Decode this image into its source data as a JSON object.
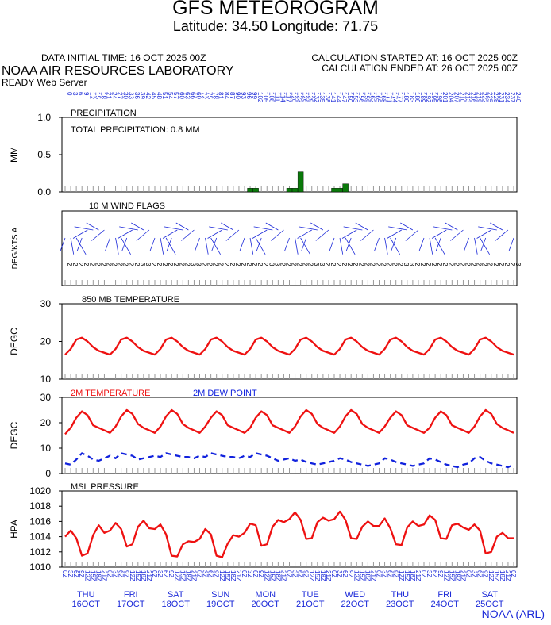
{
  "header": {
    "title": "GFS METEOROGRAM",
    "latlon": "Latitude: 34.50 Longitude:  71.75",
    "data_initial_time": "DATA INITIAL TIME: 16 OCT 2025 00Z",
    "calc_started": "CALCULATION STARTED AT: 16 OCT 2025 00Z",
    "calc_ended": "CALCULATION ENDED AT: 26 OCT 2025 00Z",
    "lab": "NOAA AIR RESOURCES LABORATORY",
    "server": "READY Web Server",
    "credit": "NOAA (ARL)"
  },
  "colors": {
    "temperature": "#ee1111",
    "dewpoint": "#1122dd",
    "precip": "#0a7a0a",
    "wind": "#1a28d8",
    "axis": "#000000"
  },
  "chart_data": [
    {
      "type": "bar",
      "panel_label": "PRECIPITATION",
      "ylabel": "MM",
      "annotation": "TOTAL PRECIPITATION:   0.8 MM",
      "ylim": [
        0,
        1.0
      ],
      "yticks": [
        "1.0",
        "0.5",
        "0.0"
      ],
      "x_top_labels": [
        "0",
        "3",
        "6",
        "9",
        "12",
        "15",
        "18",
        "21",
        "24",
        "27",
        "30",
        "33",
        "36",
        "39",
        "42",
        "45",
        "48",
        "51",
        "54",
        "57",
        "60",
        "63",
        "66",
        "69",
        "72",
        "75",
        "78",
        "81",
        "84",
        "87",
        "90",
        "93",
        "96",
        "99",
        "102",
        "105",
        "108",
        "111",
        "114",
        "117",
        "120",
        "123",
        "126",
        "129",
        "132",
        "135",
        "138",
        "141",
        "144",
        "147",
        "150",
        "153",
        "156",
        "159",
        "162",
        "165",
        "168",
        "171",
        "174",
        "177",
        "180",
        "183",
        "186",
        "189",
        "192",
        "195",
        "198",
        "201",
        "204",
        "207",
        "210",
        "213",
        "216",
        "219",
        "222",
        "225",
        "228",
        "231",
        "234",
        "237",
        "240"
      ],
      "bars": [
        {
          "x": 33,
          "value": 0.05
        },
        {
          "x": 34,
          "value": 0.05
        },
        {
          "x": 40,
          "value": 0.05
        },
        {
          "x": 41,
          "value": 0.05
        },
        {
          "x": 42,
          "value": 0.27
        },
        {
          "x": 48,
          "value": 0.05
        },
        {
          "x": 49,
          "value": 0.05
        },
        {
          "x": 50,
          "value": 0.11
        }
      ]
    },
    {
      "type": "wind_barbs",
      "panel_label": "10 M  WIND FLAGS",
      "ylabel": "DEG/KTS  A",
      "speeds": [
        2,
        2,
        2,
        2,
        2,
        2,
        2,
        2,
        2,
        2,
        2,
        2,
        2,
        3,
        3,
        2,
        2,
        2,
        2,
        2,
        2,
        2,
        3,
        3,
        2,
        2,
        2,
        2,
        2,
        2,
        2,
        2,
        2,
        2,
        2,
        2,
        3,
        3,
        2,
        2,
        2,
        2,
        2,
        2,
        3,
        3,
        2,
        2,
        2,
        2,
        2,
        2,
        2,
        2,
        2,
        2,
        2,
        2,
        2,
        2,
        3,
        3,
        2,
        2,
        2,
        2,
        2,
        2,
        2,
        2,
        2,
        2,
        2,
        2,
        2,
        2,
        2,
        2,
        2,
        2,
        3
      ]
    },
    {
      "type": "line",
      "panel_label": "850 MB  TEMPERATURE",
      "ylabel": "DEGC",
      "ylim": [
        10,
        30
      ],
      "yticks": [
        "30",
        "20",
        "10"
      ],
      "series": [
        {
          "values": [
            16.5,
            18,
            20.5,
            21,
            20,
            18.5,
            17.5,
            17,
            16.5,
            18,
            20.5,
            21,
            20,
            18.5,
            17.5,
            17,
            16.5,
            18,
            20.5,
            21,
            20,
            18.5,
            17.5,
            17,
            16.5,
            18,
            20.5,
            21,
            20,
            18.5,
            17.5,
            17,
            16.5,
            18,
            20.5,
            21,
            20,
            18.5,
            17.5,
            17,
            16.5,
            18,
            20.5,
            21,
            20,
            18.5,
            17.5,
            17,
            16.5,
            18,
            20.5,
            21,
            20,
            18.5,
            17.5,
            17,
            16.5,
            18,
            20.5,
            21,
            20,
            18.5,
            17.5,
            17,
            16.5,
            18,
            20.5,
            21,
            20,
            18.5,
            17.5,
            17,
            16.5,
            18,
            20.5,
            21,
            20,
            18.5,
            17.5,
            17,
            16.5
          ]
        }
      ]
    },
    {
      "type": "line",
      "ylabel": "DEGC",
      "ylim": [
        0,
        30
      ],
      "yticks": [
        "30",
        "20",
        "10",
        "0"
      ],
      "series": [
        {
          "name": "2M TEMPERATURE",
          "values": [
            15.5,
            18,
            22,
            24.5,
            23,
            19,
            18,
            17,
            16,
            18.5,
            22.5,
            25,
            23.5,
            19.5,
            18,
            17,
            16,
            18.5,
            22.5,
            25,
            23.5,
            19.5,
            18,
            17,
            16,
            18.5,
            22,
            24.5,
            23,
            19,
            18,
            17,
            16,
            18,
            22,
            24.5,
            23,
            19,
            18,
            17,
            16,
            18.5,
            22.5,
            25,
            23.5,
            19.5,
            18,
            17,
            16,
            18.5,
            22.5,
            25,
            23.5,
            19.5,
            18,
            17,
            16,
            18.5,
            22,
            24.5,
            23,
            19,
            18,
            17,
            16,
            18,
            22,
            24.5,
            23,
            19,
            18,
            17,
            16,
            18.5,
            22.5,
            25,
            23.5,
            19.5,
            18,
            17,
            16
          ]
        },
        {
          "name": "2M  DEW POINT",
          "values": [
            4,
            3.5,
            5.5,
            8,
            7,
            5.5,
            5,
            6,
            7,
            6,
            8,
            7.5,
            7,
            5.5,
            6,
            6.5,
            7,
            6.5,
            8,
            7.5,
            7,
            6.5,
            6.5,
            6,
            7,
            6.5,
            8,
            7.5,
            7,
            6.5,
            6.5,
            6,
            7,
            6.5,
            8,
            7.5,
            7,
            6,
            5,
            5.5,
            6,
            5,
            5.5,
            4.5,
            4,
            3.5,
            4,
            4.5,
            5,
            6,
            5.5,
            4.5,
            4,
            3.5,
            3,
            3.5,
            4,
            6,
            5.5,
            4.5,
            4,
            3.5,
            3,
            3.5,
            4,
            6,
            5.5,
            4.5,
            3.5,
            3,
            2.5,
            3.5,
            4,
            6,
            6.5,
            5,
            4,
            3.5,
            3,
            2.5,
            3.5
          ]
        }
      ]
    },
    {
      "type": "line",
      "panel_label": "MSL PRESSURE",
      "ylabel": "HPA",
      "ylim": [
        1010,
        1020
      ],
      "yticks": [
        "1020",
        "1018",
        "1016",
        "1014",
        "1012",
        "1010"
      ],
      "series": [
        {
          "values": [
            1014,
            1014.8,
            1013.8,
            1011.5,
            1011.8,
            1014.2,
            1015.5,
            1014.5,
            1014.8,
            1015.8,
            1015,
            1012.7,
            1013,
            1015.3,
            1016.1,
            1015.1,
            1015,
            1015.6,
            1014.3,
            1011.5,
            1011.4,
            1013,
            1013.4,
            1013.3,
            1013.7,
            1015,
            1014.3,
            1011.5,
            1011.3,
            1013.1,
            1014.2,
            1014,
            1014.5,
            1015.7,
            1015.5,
            1012.8,
            1013,
            1015.3,
            1016.2,
            1015.9,
            1016.3,
            1017.2,
            1016.2,
            1013.7,
            1013.8,
            1015.9,
            1016.5,
            1016.1,
            1016.3,
            1017.3,
            1016.2,
            1013.8,
            1013.7,
            1015.3,
            1016,
            1015.4,
            1015.4,
            1016.4,
            1015.1,
            1013,
            1012.9,
            1015.2,
            1016,
            1015.4,
            1015.6,
            1016.8,
            1016.2,
            1013.8,
            1013.7,
            1015.5,
            1015.7,
            1015.2,
            1014.9,
            1015.6,
            1014.8,
            1011.8,
            1012,
            1014,
            1014.5,
            1013.8,
            1013.8
          ]
        }
      ],
      "x_bottom_labels": [
        "0Z",
        "3Z",
        "6Z",
        "9Z",
        "12Z",
        "15Z",
        "18Z",
        "21Z",
        "0Z",
        "3Z",
        "6Z",
        "9Z",
        "12Z",
        "15Z",
        "18Z",
        "21Z",
        "0Z",
        "3Z",
        "6Z",
        "9Z",
        "12Z",
        "15Z",
        "18Z",
        "21Z",
        "0Z",
        "3Z",
        "6Z",
        "9Z",
        "12Z",
        "15Z",
        "18Z",
        "21Z",
        "0Z",
        "3Z",
        "6Z",
        "9Z",
        "12Z",
        "15Z",
        "18Z",
        "21Z",
        "0Z",
        "3Z",
        "6Z",
        "9Z",
        "12Z",
        "15Z",
        "18Z",
        "21Z",
        "0Z",
        "3Z",
        "6Z",
        "9Z",
        "12Z",
        "15Z",
        "18Z",
        "21Z",
        "0Z",
        "3Z",
        "6Z",
        "9Z",
        "12Z",
        "15Z",
        "18Z",
        "21Z",
        "0Z",
        "3Z",
        "6Z",
        "9Z",
        "12Z",
        "15Z",
        "18Z",
        "21Z",
        "0Z",
        "3Z",
        "6Z",
        "9Z",
        "12Z",
        "15Z",
        "18Z",
        "21Z",
        "0Z"
      ],
      "days": [
        {
          "day": "THU",
          "date": "16OCT"
        },
        {
          "day": "FRI",
          "date": "17OCT"
        },
        {
          "day": "SAT",
          "date": "18OCT"
        },
        {
          "day": "SUN",
          "date": "19OCT"
        },
        {
          "day": "MON",
          "date": "20OCT"
        },
        {
          "day": "TUE",
          "date": "21OCT"
        },
        {
          "day": "WED",
          "date": "22OCT"
        },
        {
          "day": "THU",
          "date": "23OCT"
        },
        {
          "day": "FRI",
          "date": "24OCT"
        },
        {
          "day": "SAT",
          "date": "25OCT"
        }
      ]
    }
  ]
}
